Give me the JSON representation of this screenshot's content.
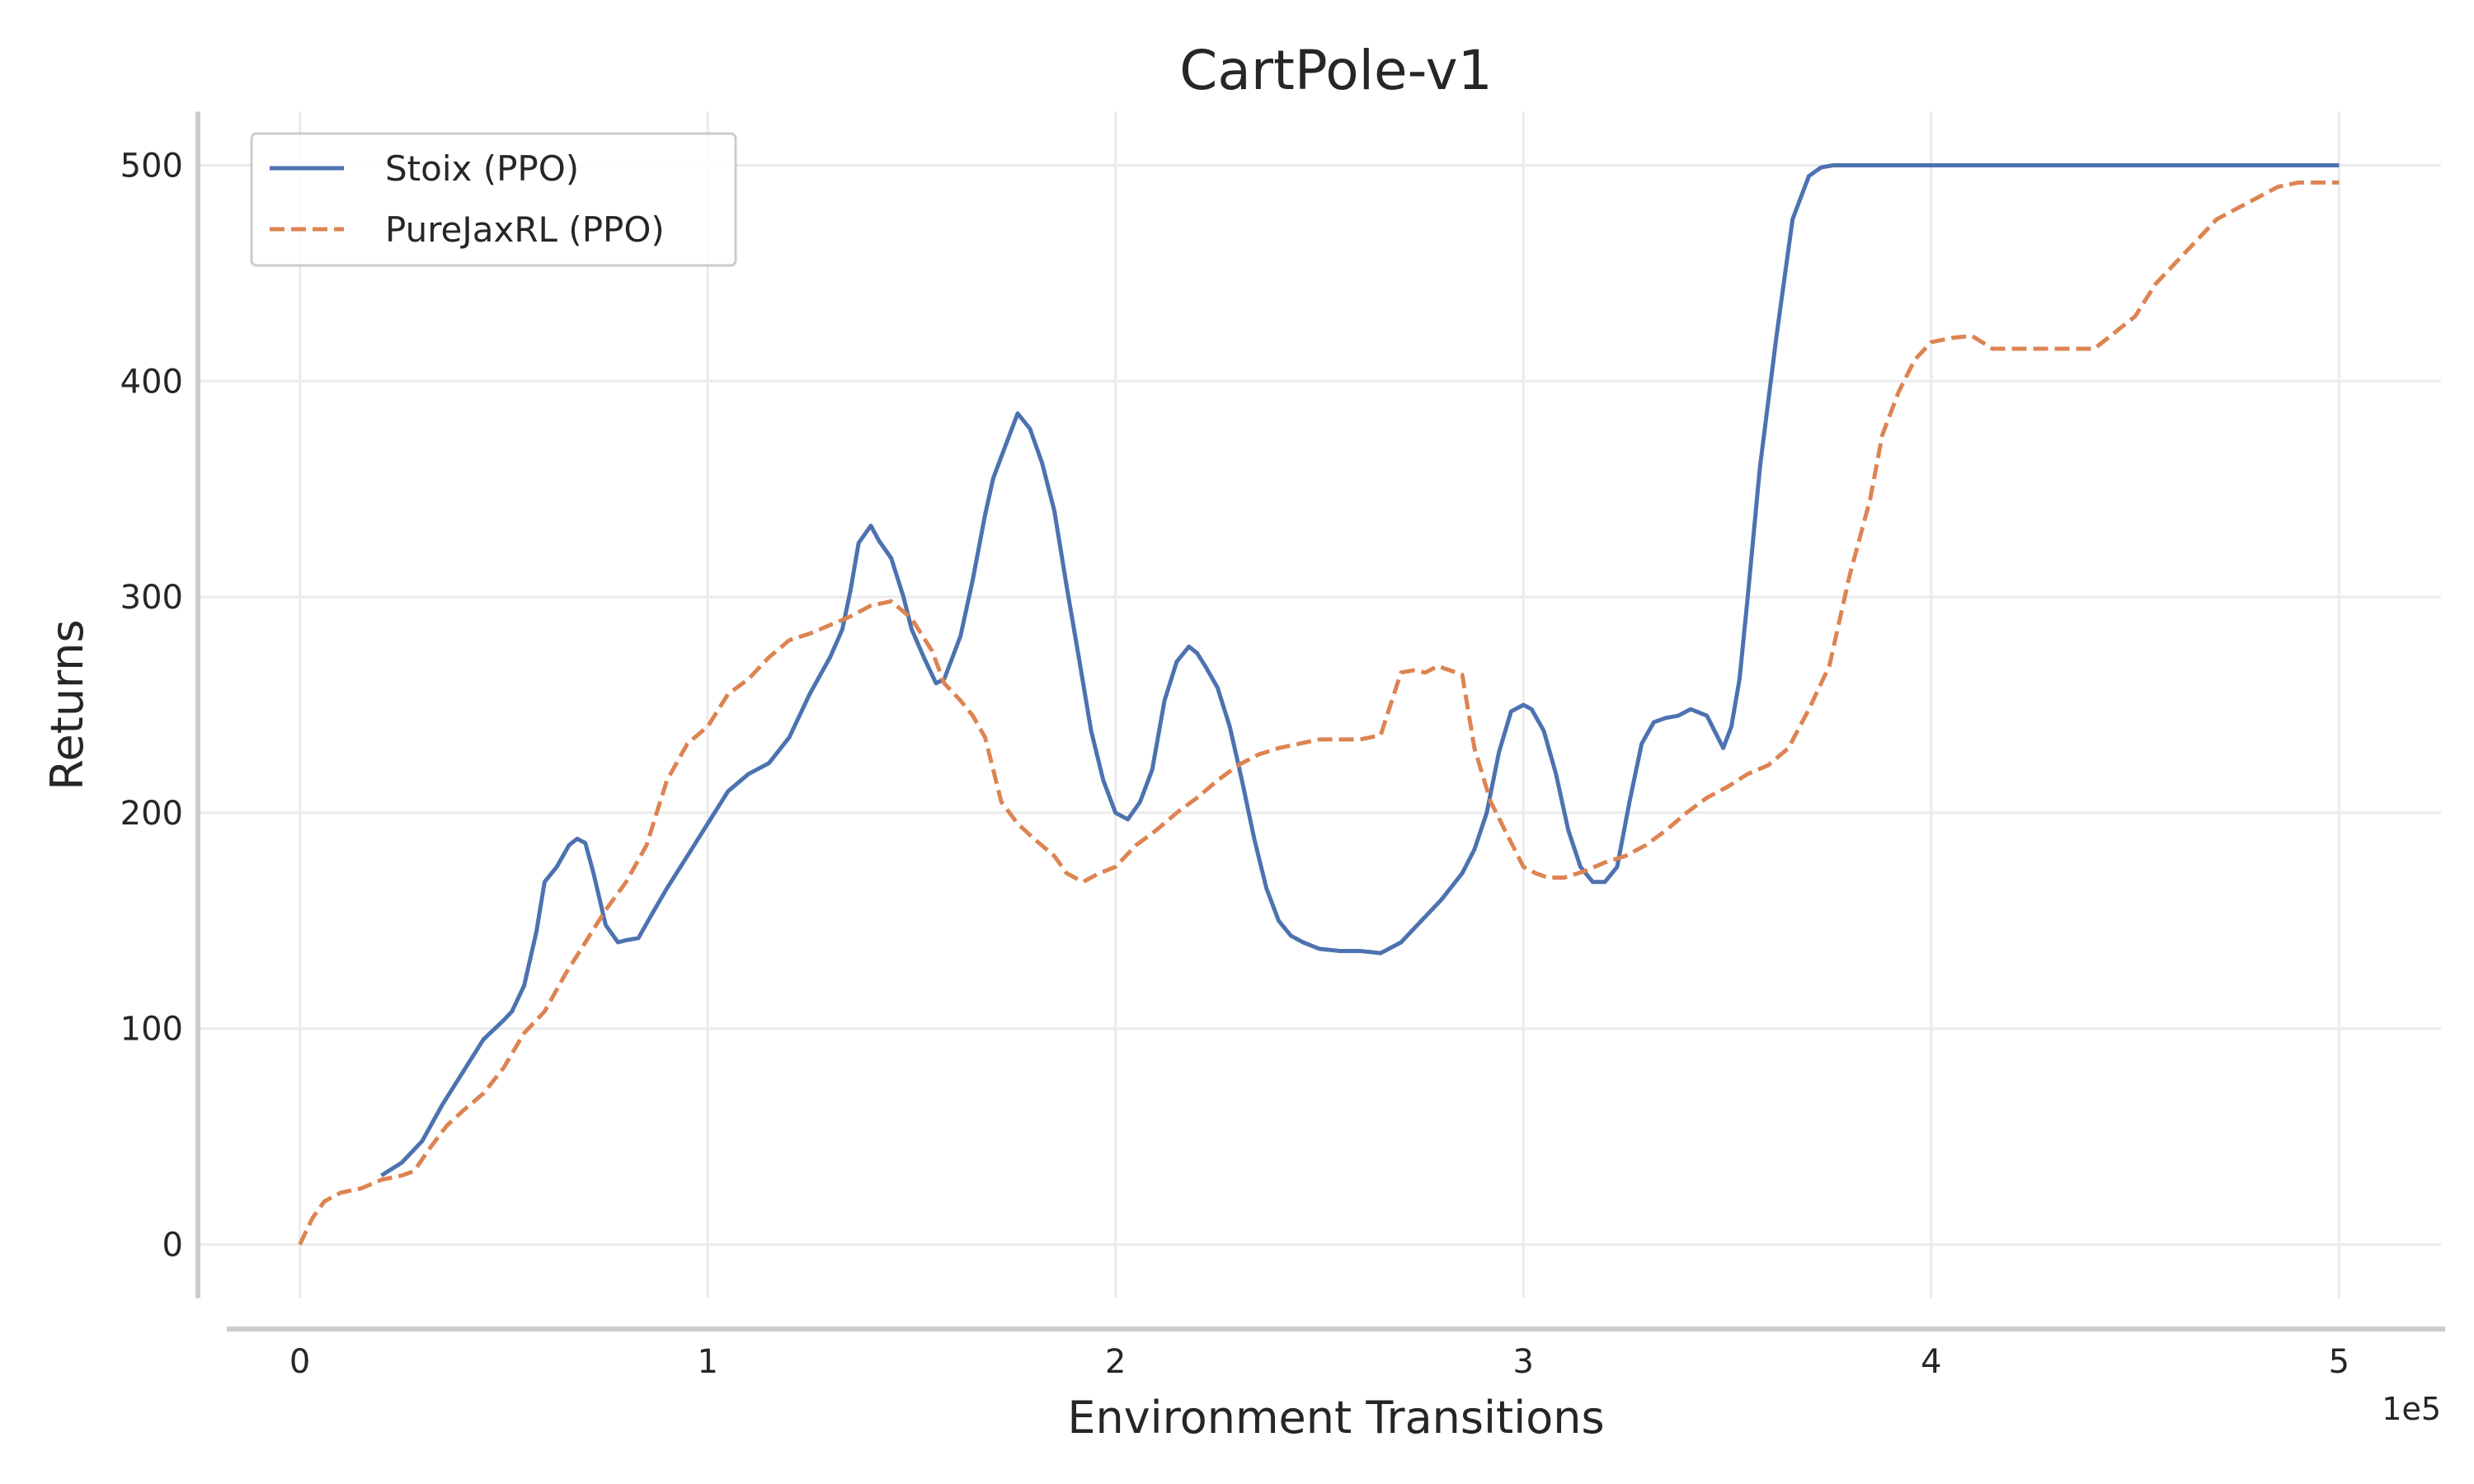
{
  "chart_data": {
    "type": "line",
    "title": "CartPole-v1",
    "xlabel": "Environment Transitions",
    "ylabel": "Returns",
    "x_offset_label": "1e5",
    "xlim": [
      -0.25,
      5.25
    ],
    "ylim": [
      -25,
      525
    ],
    "x_ticks": [
      0,
      1,
      2,
      3,
      4,
      5
    ],
    "x_tick_labels": [
      "0",
      "1",
      "2",
      "3",
      "4",
      "5"
    ],
    "y_ticks": [
      0,
      100,
      200,
      300,
      400,
      500
    ],
    "y_tick_labels": [
      "0",
      "100",
      "200",
      "300",
      "400",
      "500"
    ],
    "grid": true,
    "legend_position": "top-left",
    "series": [
      {
        "name": "Stoix (PPO)",
        "color": "#4c72b0",
        "dash": "solid",
        "x": [
          0.2,
          0.25,
          0.3,
          0.35,
          0.4,
          0.45,
          0.5,
          0.52,
          0.55,
          0.58,
          0.6,
          0.63,
          0.66,
          0.68,
          0.7,
          0.72,
          0.75,
          0.78,
          0.8,
          0.83,
          0.86,
          0.9,
          0.95,
          1.0,
          1.05,
          1.1,
          1.15,
          1.2,
          1.25,
          1.3,
          1.33,
          1.35,
          1.37,
          1.4,
          1.42,
          1.45,
          1.48,
          1.5,
          1.53,
          1.56,
          1.58,
          1.62,
          1.65,
          1.68,
          1.7,
          1.73,
          1.76,
          1.79,
          1.82,
          1.85,
          1.88,
          1.91,
          1.94,
          1.97,
          2.0,
          2.03,
          2.06,
          2.09,
          2.12,
          2.15,
          2.18,
          2.2,
          2.22,
          2.25,
          2.28,
          2.31,
          2.34,
          2.37,
          2.4,
          2.43,
          2.46,
          2.5,
          2.55,
          2.6,
          2.65,
          2.7,
          2.75,
          2.8,
          2.85,
          2.88,
          2.91,
          2.94,
          2.97,
          3.0,
          3.02,
          3.05,
          3.08,
          3.11,
          3.14,
          3.17,
          3.2,
          3.23,
          3.26,
          3.29,
          3.32,
          3.35,
          3.38,
          3.41,
          3.45,
          3.49,
          3.51,
          3.53,
          3.55,
          3.58,
          3.62,
          3.66,
          3.7,
          3.73,
          3.76,
          3.78,
          3.8,
          3.85,
          3.9,
          4.0,
          4.5,
          5.0
        ],
        "values": [
          32,
          38,
          48,
          65,
          80,
          95,
          104,
          108,
          120,
          145,
          168,
          175,
          185,
          188,
          186,
          172,
          148,
          140,
          141,
          142,
          152,
          165,
          180,
          195,
          210,
          218,
          223,
          235,
          255,
          272,
          285,
          303,
          325,
          333,
          326,
          318,
          300,
          285,
          272,
          260,
          262,
          282,
          308,
          338,
          355,
          370,
          385,
          378,
          362,
          340,
          305,
          272,
          238,
          215,
          200,
          197,
          205,
          220,
          252,
          270,
          277,
          274,
          268,
          258,
          240,
          215,
          188,
          165,
          150,
          143,
          140,
          137,
          136,
          136,
          135,
          140,
          150,
          160,
          172,
          183,
          200,
          228,
          247,
          250,
          248,
          238,
          218,
          192,
          175,
          168,
          168,
          175,
          205,
          232,
          242,
          244,
          245,
          248,
          245,
          230,
          240,
          262,
          300,
          360,
          420,
          475,
          495,
          499,
          500,
          500,
          500,
          500,
          500,
          500,
          500,
          500
        ]
      },
      {
        "name": "PureJaxRL (PPO)",
        "color": "#dd8452",
        "dash": "dashed",
        "x": [
          0.0,
          0.03,
          0.06,
          0.1,
          0.15,
          0.2,
          0.25,
          0.28,
          0.32,
          0.36,
          0.4,
          0.45,
          0.5,
          0.55,
          0.6,
          0.65,
          0.7,
          0.75,
          0.8,
          0.85,
          0.9,
          0.95,
          1.0,
          1.05,
          1.1,
          1.15,
          1.2,
          1.25,
          1.3,
          1.35,
          1.4,
          1.45,
          1.5,
          1.55,
          1.58,
          1.62,
          1.65,
          1.68,
          1.72,
          1.76,
          1.8,
          1.85,
          1.88,
          1.92,
          1.96,
          2.0,
          2.05,
          2.1,
          2.15,
          2.2,
          2.25,
          2.3,
          2.35,
          2.4,
          2.45,
          2.5,
          2.55,
          2.6,
          2.65,
          2.7,
          2.73,
          2.76,
          2.79,
          2.82,
          2.85,
          2.88,
          2.92,
          2.96,
          3.0,
          3.03,
          3.06,
          3.1,
          3.15,
          3.2,
          3.25,
          3.3,
          3.35,
          3.4,
          3.45,
          3.5,
          3.55,
          3.6,
          3.65,
          3.7,
          3.75,
          3.8,
          3.85,
          3.88,
          3.92,
          3.96,
          4.0,
          4.05,
          4.1,
          4.15,
          4.2,
          4.3,
          4.4,
          4.5,
          4.55,
          4.6,
          4.65,
          4.7,
          4.75,
          4.8,
          4.85,
          4.9,
          4.95,
          5.0
        ],
        "values": [
          0,
          12,
          20,
          24,
          26,
          30,
          32,
          34,
          45,
          55,
          62,
          70,
          82,
          98,
          108,
          125,
          140,
          155,
          168,
          185,
          215,
          232,
          240,
          255,
          262,
          272,
          280,
          283,
          287,
          291,
          296,
          298,
          290,
          275,
          260,
          252,
          245,
          235,
          205,
          195,
          188,
          180,
          172,
          168,
          172,
          175,
          185,
          192,
          200,
          207,
          215,
          222,
          227,
          230,
          232,
          234,
          234,
          234,
          236,
          265,
          266,
          265,
          268,
          266,
          264,
          230,
          205,
          190,
          175,
          172,
          170,
          170,
          173,
          177,
          180,
          185,
          192,
          200,
          207,
          212,
          218,
          222,
          230,
          248,
          268,
          310,
          345,
          375,
          395,
          410,
          418,
          420,
          421,
          415,
          415,
          415,
          415,
          430,
          445,
          455,
          465,
          475,
          480,
          485,
          490,
          492,
          492,
          492
        ]
      }
    ]
  }
}
